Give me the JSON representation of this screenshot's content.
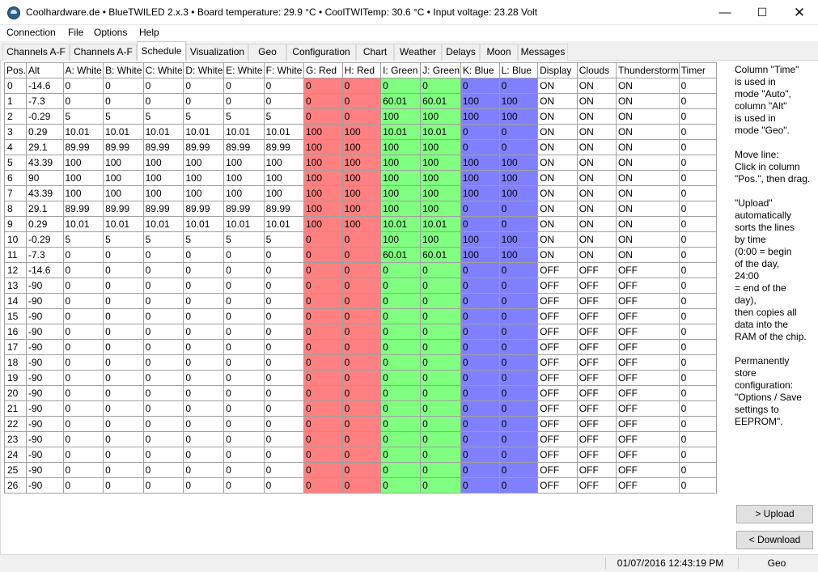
{
  "window": {
    "title": "Coolhardware.de • BlueTWILED 2.x.3 • Board temperature: 29.9 °C • CoolTWITemp: 30.6 °C • Input voltage: 23.28 Volt",
    "minimize_glyph": "—",
    "maximize_glyph": "☐",
    "close_glyph": "✕"
  },
  "menu": [
    "Connection",
    "File",
    "Options",
    "Help"
  ],
  "tabs": [
    "Channels A-F",
    "Channels A-F",
    "Schedule",
    "Visualization",
    "Geo",
    "Configuration",
    "Chart",
    "Weather",
    "Delays",
    "Moon",
    "Messages"
  ],
  "active_tab": "Schedule",
  "table": {
    "columns": [
      "Pos.",
      "Alt",
      "A: White",
      "B: White",
      "C: White",
      "D: White",
      "E: White",
      "F: White",
      "G: Red",
      "H: Red",
      "I: Green",
      "J: Green",
      "K: Blue",
      "L: Blue",
      "Display",
      "Clouds",
      "Thunderstorm",
      "Timer"
    ],
    "column_colors": {
      "red": "#ff8080",
      "green": "#80ff80",
      "blue": "#8080ff"
    },
    "rows": [
      [
        "0",
        "-14.6",
        "0",
        "0",
        "0",
        "0",
        "0",
        "0",
        "0",
        "0",
        "0",
        "0",
        "0",
        "0",
        "ON",
        "ON",
        "ON",
        "0"
      ],
      [
        "1",
        "-7.3",
        "0",
        "0",
        "0",
        "0",
        "0",
        "0",
        "0",
        "0",
        "60.01",
        "60.01",
        "100",
        "100",
        "ON",
        "ON",
        "ON",
        "0"
      ],
      [
        "2",
        "-0.29",
        "5",
        "5",
        "5",
        "5",
        "5",
        "5",
        "0",
        "0",
        "100",
        "100",
        "100",
        "100",
        "ON",
        "ON",
        "ON",
        "0"
      ],
      [
        "3",
        "0.29",
        "10.01",
        "10.01",
        "10.01",
        "10.01",
        "10.01",
        "10.01",
        "100",
        "100",
        "10.01",
        "10.01",
        "0",
        "0",
        "ON",
        "ON",
        "ON",
        "0"
      ],
      [
        "4",
        "29.1",
        "89.99",
        "89.99",
        "89.99",
        "89.99",
        "89.99",
        "89.99",
        "100",
        "100",
        "100",
        "100",
        "0",
        "0",
        "ON",
        "ON",
        "ON",
        "0"
      ],
      [
        "5",
        "43.39",
        "100",
        "100",
        "100",
        "100",
        "100",
        "100",
        "100",
        "100",
        "100",
        "100",
        "100",
        "100",
        "ON",
        "ON",
        "ON",
        "0"
      ],
      [
        "6",
        "90",
        "100",
        "100",
        "100",
        "100",
        "100",
        "100",
        "100",
        "100",
        "100",
        "100",
        "100",
        "100",
        "ON",
        "ON",
        "ON",
        "0"
      ],
      [
        "7",
        "43.39",
        "100",
        "100",
        "100",
        "100",
        "100",
        "100",
        "100",
        "100",
        "100",
        "100",
        "100",
        "100",
        "ON",
        "ON",
        "ON",
        "0"
      ],
      [
        "8",
        "29.1",
        "89.99",
        "89.99",
        "89.99",
        "89.99",
        "89.99",
        "89.99",
        "100",
        "100",
        "100",
        "100",
        "0",
        "0",
        "ON",
        "ON",
        "ON",
        "0"
      ],
      [
        "9",
        "0.29",
        "10.01",
        "10.01",
        "10.01",
        "10.01",
        "10.01",
        "10.01",
        "100",
        "100",
        "10.01",
        "10.01",
        "0",
        "0",
        "ON",
        "ON",
        "ON",
        "0"
      ],
      [
        "10",
        "-0.29",
        "5",
        "5",
        "5",
        "5",
        "5",
        "5",
        "0",
        "0",
        "100",
        "100",
        "100",
        "100",
        "ON",
        "ON",
        "ON",
        "0"
      ],
      [
        "11",
        "-7.3",
        "0",
        "0",
        "0",
        "0",
        "0",
        "0",
        "0",
        "0",
        "60.01",
        "60.01",
        "100",
        "100",
        "ON",
        "ON",
        "ON",
        "0"
      ],
      [
        "12",
        "-14.6",
        "0",
        "0",
        "0",
        "0",
        "0",
        "0",
        "0",
        "0",
        "0",
        "0",
        "0",
        "0",
        "OFF",
        "OFF",
        "OFF",
        "0"
      ],
      [
        "13",
        "-90",
        "0",
        "0",
        "0",
        "0",
        "0",
        "0",
        "0",
        "0",
        "0",
        "0",
        "0",
        "0",
        "OFF",
        "OFF",
        "OFF",
        "0"
      ],
      [
        "14",
        "-90",
        "0",
        "0",
        "0",
        "0",
        "0",
        "0",
        "0",
        "0",
        "0",
        "0",
        "0",
        "0",
        "OFF",
        "OFF",
        "OFF",
        "0"
      ],
      [
        "15",
        "-90",
        "0",
        "0",
        "0",
        "0",
        "0",
        "0",
        "0",
        "0",
        "0",
        "0",
        "0",
        "0",
        "OFF",
        "OFF",
        "OFF",
        "0"
      ],
      [
        "16",
        "-90",
        "0",
        "0",
        "0",
        "0",
        "0",
        "0",
        "0",
        "0",
        "0",
        "0",
        "0",
        "0",
        "OFF",
        "OFF",
        "OFF",
        "0"
      ],
      [
        "17",
        "-90",
        "0",
        "0",
        "0",
        "0",
        "0",
        "0",
        "0",
        "0",
        "0",
        "0",
        "0",
        "0",
        "OFF",
        "OFF",
        "OFF",
        "0"
      ],
      [
        "18",
        "-90",
        "0",
        "0",
        "0",
        "0",
        "0",
        "0",
        "0",
        "0",
        "0",
        "0",
        "0",
        "0",
        "OFF",
        "OFF",
        "OFF",
        "0"
      ],
      [
        "19",
        "-90",
        "0",
        "0",
        "0",
        "0",
        "0",
        "0",
        "0",
        "0",
        "0",
        "0",
        "0",
        "0",
        "OFF",
        "OFF",
        "OFF",
        "0"
      ],
      [
        "20",
        "-90",
        "0",
        "0",
        "0",
        "0",
        "0",
        "0",
        "0",
        "0",
        "0",
        "0",
        "0",
        "0",
        "OFF",
        "OFF",
        "OFF",
        "0"
      ],
      [
        "21",
        "-90",
        "0",
        "0",
        "0",
        "0",
        "0",
        "0",
        "0",
        "0",
        "0",
        "0",
        "0",
        "0",
        "OFF",
        "OFF",
        "OFF",
        "0"
      ],
      [
        "22",
        "-90",
        "0",
        "0",
        "0",
        "0",
        "0",
        "0",
        "0",
        "0",
        "0",
        "0",
        "0",
        "0",
        "OFF",
        "OFF",
        "OFF",
        "0"
      ],
      [
        "23",
        "-90",
        "0",
        "0",
        "0",
        "0",
        "0",
        "0",
        "0",
        "0",
        "0",
        "0",
        "0",
        "0",
        "OFF",
        "OFF",
        "OFF",
        "0"
      ],
      [
        "24",
        "-90",
        "0",
        "0",
        "0",
        "0",
        "0",
        "0",
        "0",
        "0",
        "0",
        "0",
        "0",
        "0",
        "OFF",
        "OFF",
        "OFF",
        "0"
      ],
      [
        "25",
        "-90",
        "0",
        "0",
        "0",
        "0",
        "0",
        "0",
        "0",
        "0",
        "0",
        "0",
        "0",
        "0",
        "OFF",
        "OFF",
        "OFF",
        "0"
      ],
      [
        "26",
        "-90",
        "0",
        "0",
        "0",
        "0",
        "0",
        "0",
        "0",
        "0",
        "0",
        "0",
        "0",
        "0",
        "OFF",
        "OFF",
        "OFF",
        "0"
      ]
    ]
  },
  "help_text": "Column \"Time\"\nis used in\nmode \"Auto\",\ncolumn \"Alt\"\nis used in\nmode \"Geo\".\n\nMove line:\nClick in column\n\"Pos.\", then drag.\n\n\"Upload\"\nautomatically\nsorts the lines\nby time\n(0:00 = begin\nof the day,\n24:00\n= end of the\nday),\nthen copies all\ndata into the\nRAM of the chip.\n\nPermanently\nstore\nconfiguration:\n\"Options / Save\nsettings to\nEEPROM\".",
  "buttons": {
    "upload": "> Upload",
    "download": "< Download"
  },
  "status": {
    "datetime": "01/07/2016 12:43:19 PM",
    "mode": "Geo"
  }
}
